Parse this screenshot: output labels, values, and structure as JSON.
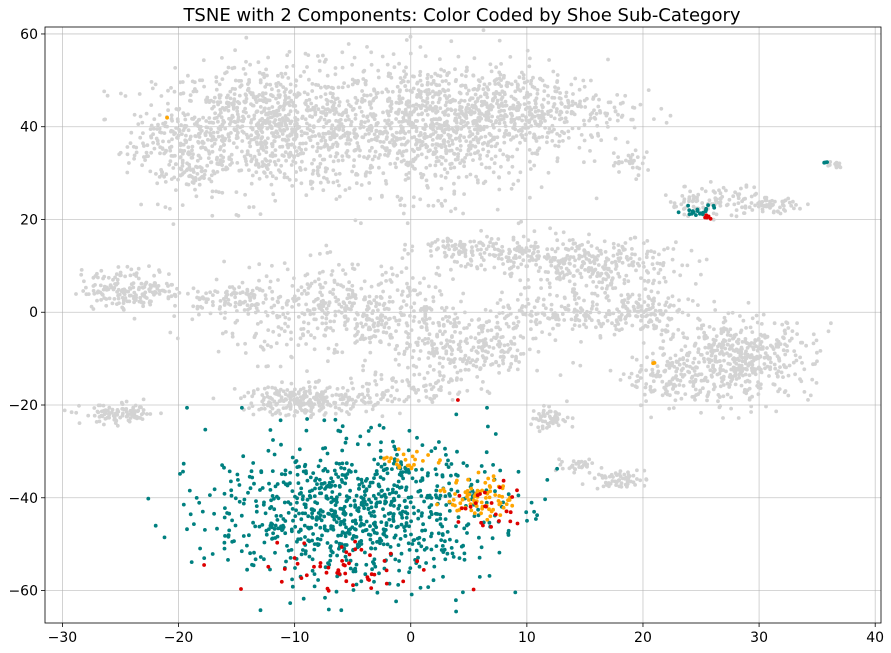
{
  "chart_data": {
    "type": "scatter",
    "title": "TSNE with 2 Components: Color Coded by Shoe Sub-Category",
    "xlabel": "",
    "ylabel": "",
    "xlim": [
      -31.5,
      40.5
    ],
    "ylim": [
      -67,
      61.5
    ],
    "x_ticks": [
      -30,
      -20,
      -10,
      0,
      10,
      20,
      30,
      40
    ],
    "y_ticks": [
      -60,
      -40,
      -20,
      0,
      20,
      40,
      60
    ],
    "grid": true,
    "legend": "none",
    "colors": {
      "other": "#d3d3d3",
      "teal": "#008080",
      "orange": "#ffa500",
      "red": "#dd0000"
    },
    "series": [
      {
        "color": "#d3d3d3",
        "clusters": [
          {
            "cx": -12,
            "cy": 40,
            "rx": 9,
            "ry": 12,
            "n": 900
          },
          {
            "cx": 2,
            "cy": 40,
            "rx": 9,
            "ry": 13,
            "n": 900
          },
          {
            "cx": 10,
            "cy": 44,
            "rx": 8,
            "ry": 7,
            "n": 350
          },
          {
            "cx": -20,
            "cy": 35,
            "rx": 4,
            "ry": 10,
            "n": 200
          },
          {
            "cx": -24,
            "cy": 5,
            "rx": 4,
            "ry": 4,
            "n": 180
          },
          {
            "cx": -16,
            "cy": 3,
            "rx": 3,
            "ry": 3,
            "n": 80
          },
          {
            "cx": -5,
            "cy": 0,
            "rx": 10,
            "ry": 9,
            "n": 500
          },
          {
            "cx": 5,
            "cy": -8,
            "rx": 6,
            "ry": 7,
            "n": 250
          },
          {
            "cx": 9,
            "cy": 12,
            "rx": 5,
            "ry": 5,
            "n": 150
          },
          {
            "cx": 17,
            "cy": 10,
            "rx": 6,
            "ry": 5,
            "n": 250
          },
          {
            "cx": 14,
            "cy": 0,
            "rx": 6,
            "ry": 4,
            "n": 150
          },
          {
            "cx": 20,
            "cy": 0,
            "rx": 3,
            "ry": 4,
            "n": 100
          },
          {
            "cx": 28,
            "cy": -10,
            "rx": 6,
            "ry": 8,
            "n": 500
          },
          {
            "cx": 22,
            "cy": -15,
            "rx": 3,
            "ry": 5,
            "n": 100
          },
          {
            "cx": 26,
            "cy": 24,
            "rx": 4,
            "ry": 3,
            "n": 100
          },
          {
            "cx": 31,
            "cy": 23,
            "rx": 2,
            "ry": 1.5,
            "n": 50
          },
          {
            "cx": 19,
            "cy": 32,
            "rx": 2,
            "ry": 3,
            "n": 30
          },
          {
            "cx": -25,
            "cy": -22,
            "rx": 3,
            "ry": 2,
            "n": 100
          },
          {
            "cx": -9,
            "cy": -19,
            "rx": 5,
            "ry": 3,
            "n": 250
          },
          {
            "cx": 0,
            "cy": -17,
            "rx": 5,
            "ry": 3,
            "n": 80
          },
          {
            "cx": 12,
            "cy": -23,
            "rx": 2,
            "ry": 2,
            "n": 50
          },
          {
            "cx": 18,
            "cy": -36,
            "rx": 2,
            "ry": 2,
            "n": 60
          },
          {
            "cx": 14,
            "cy": -33,
            "rx": 2,
            "ry": 1,
            "n": 30
          },
          {
            "cx": 4,
            "cy": 14,
            "rx": 3,
            "ry": 2,
            "n": 60
          },
          {
            "cx": 36.5,
            "cy": 32,
            "rx": 0.8,
            "ry": 0.7,
            "n": 12
          }
        ]
      },
      {
        "color": "#008080",
        "clusters": [
          {
            "cx": -5,
            "cy": -43,
            "rx": 11,
            "ry": 14,
            "n": 900
          },
          {
            "cx": 25,
            "cy": 22,
            "rx": 1.5,
            "ry": 1.2,
            "n": 20
          },
          {
            "cx": 35.7,
            "cy": 32.3,
            "rx": 0.2,
            "ry": 0.2,
            "n": 3
          }
        ]
      },
      {
        "color": "#ffa500",
        "clusters": [
          {
            "cx": 6,
            "cy": -40,
            "rx": 2.5,
            "ry": 4,
            "n": 80
          },
          {
            "cx": 0,
            "cy": -32,
            "rx": 2.5,
            "ry": 2,
            "n": 25
          },
          {
            "cx": 21,
            "cy": -11,
            "rx": 0.3,
            "ry": 0.3,
            "n": 2
          },
          {
            "cx": -21,
            "cy": 42,
            "rx": 0.1,
            "ry": 0.1,
            "n": 1
          }
        ]
      },
      {
        "color": "#dd0000",
        "clusters": [
          {
            "cx": -5,
            "cy": -55,
            "rx": 8,
            "ry": 5,
            "n": 50
          },
          {
            "cx": 6,
            "cy": -42,
            "rx": 3,
            "ry": 5,
            "n": 25
          },
          {
            "cx": 25.5,
            "cy": 20.5,
            "rx": 0.6,
            "ry": 0.6,
            "n": 5
          },
          {
            "cx": 4,
            "cy": -19,
            "rx": 0.1,
            "ry": 0.1,
            "n": 1
          }
        ]
      }
    ]
  }
}
